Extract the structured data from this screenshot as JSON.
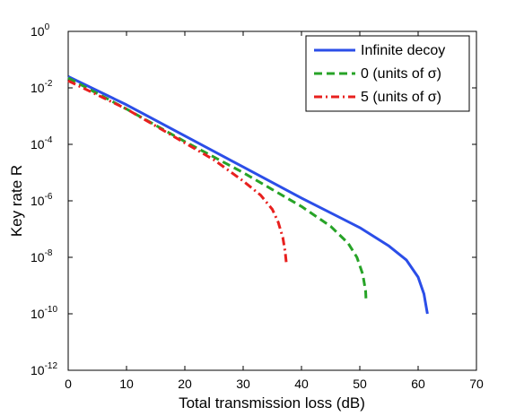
{
  "chart_data": {
    "type": "line",
    "xlabel": "Total transmission loss (dB)",
    "ylabel": "Key rate R",
    "xlim": [
      0,
      70
    ],
    "ylim_log10": [
      -12,
      0
    ],
    "yscale": "log",
    "grid": false,
    "legend_position": "top-right",
    "x_ticks": [
      0,
      10,
      20,
      30,
      40,
      50,
      60,
      70
    ],
    "x_tick_labels": [
      "0",
      "10",
      "20",
      "30",
      "40",
      "50",
      "60",
      "70"
    ],
    "y_ticks_log10": [
      0,
      -2,
      -4,
      -6,
      -8,
      -10,
      -12
    ],
    "y_tick_bases": [
      "10",
      "10",
      "10",
      "10",
      "10",
      "10",
      "10"
    ],
    "y_tick_exponents": [
      "0",
      "-2",
      "-4",
      "-6",
      "-8",
      "-10",
      "-12"
    ],
    "series": [
      {
        "name": "Infinite decoy",
        "color": "#2b4ee8",
        "style": "solid",
        "x": [
          0,
          10,
          20,
          30,
          40,
          50,
          55,
          58,
          60,
          61,
          61.5,
          61.6
        ],
        "log10_y": [
          -1.6,
          -2.6,
          -3.7,
          -4.8,
          -5.9,
          -6.95,
          -7.6,
          -8.1,
          -8.7,
          -9.3,
          -9.9,
          -10.0
        ]
      },
      {
        "name": "0 (units of σ)",
        "color": "#27a327",
        "style": "dashed",
        "x": [
          0,
          10,
          20,
          30,
          35,
          40,
          45,
          48,
          49.5,
          50.5,
          51,
          51.1
        ],
        "log10_y": [
          -1.65,
          -2.75,
          -3.9,
          -5.0,
          -5.6,
          -6.2,
          -6.9,
          -7.5,
          -8.0,
          -8.6,
          -9.2,
          -9.6
        ]
      },
      {
        "name": "5 (units of σ)",
        "color": "#e8201e",
        "style": "dashdot",
        "x": [
          0,
          10,
          20,
          25,
          30,
          33,
          35,
          36,
          36.8,
          37.2,
          37.4
        ],
        "log10_y": [
          -1.75,
          -2.75,
          -3.95,
          -4.55,
          -5.3,
          -5.8,
          -6.3,
          -6.75,
          -7.3,
          -7.8,
          -8.2
        ]
      }
    ]
  }
}
